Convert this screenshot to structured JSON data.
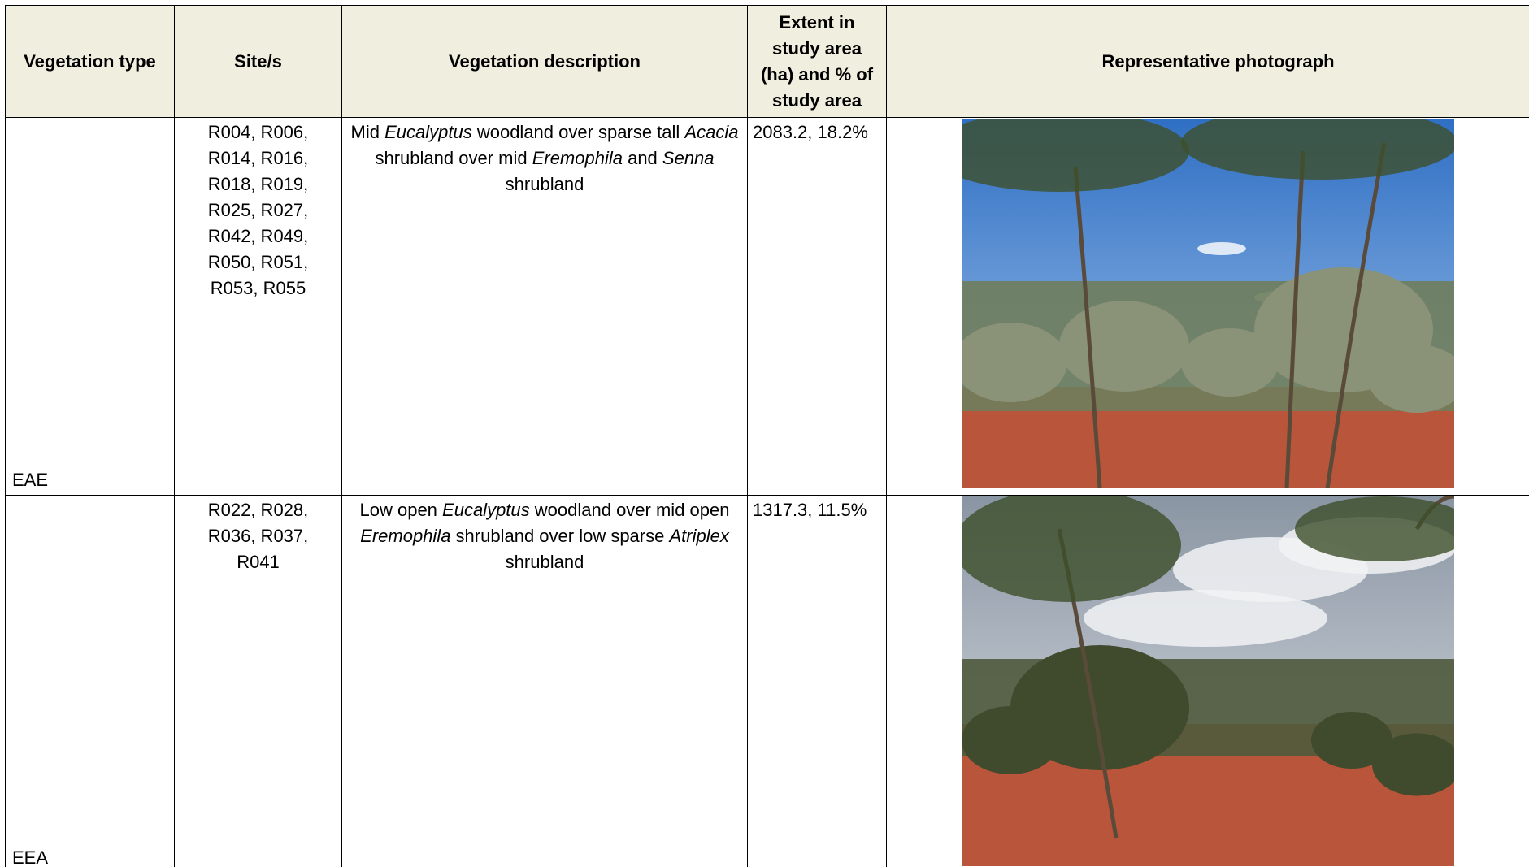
{
  "table": {
    "header": [
      "Vegetation type",
      "Site/s",
      "Vegetation description",
      "Extent in study area (ha) and % of study area",
      "Representative photograph"
    ],
    "rows": [
      {
        "type": "EAE",
        "sites": "R004, R006, R014, R016, R018, R019, R025, R027, R042, R049, R050, R051, R053, R055",
        "description": [
          "Mid ",
          "Eucalyptus",
          " woodland over sparse tall ",
          "Acacia",
          " shrubland over mid ",
          "Eremophila",
          " and ",
          "Senna",
          " shrubland"
        ],
        "extent": "2083.2, 18.2%"
      },
      {
        "type": "EEA",
        "sites": "R022, R028, R036, R037, R041",
        "description": [
          "Low open ",
          "Eucalyptus",
          " woodland over mid open ",
          "Eremophila",
          " shrubland over low sparse ",
          "Atriplex",
          " shrubland"
        ],
        "extent": "1317.3, 11.5%"
      }
    ]
  }
}
